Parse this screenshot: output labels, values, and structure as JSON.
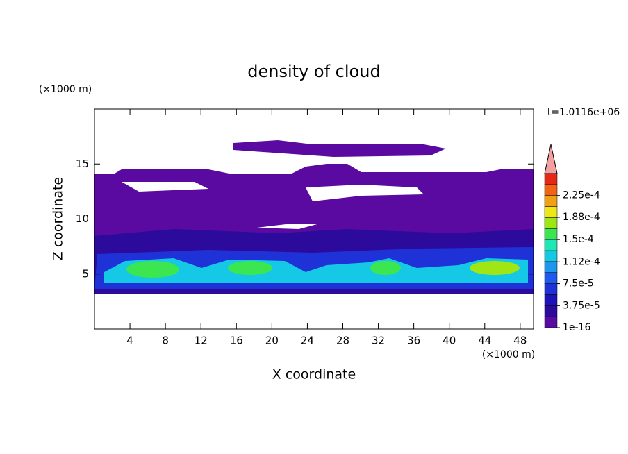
{
  "chart_data": {
    "type": "contour",
    "title": "density of cloud",
    "xlabel": "X coordinate",
    "ylabel": "Z coordinate",
    "xunit": "(×1000 m)",
    "yunit": "(×1000 m)",
    "annotation": "t=1.0116e+06",
    "xlim": [
      0,
      49.5
    ],
    "ylim": [
      0,
      20
    ],
    "xticks": [
      4,
      8,
      12,
      16,
      20,
      24,
      28,
      32,
      36,
      40,
      44,
      48
    ],
    "yticks": [
      5,
      10,
      15
    ],
    "colorbar": {
      "ticks": [
        {
          "value": 1e-16,
          "label": "1e-16"
        },
        {
          "value": 3.75e-05,
          "label": "3.75e-5"
        },
        {
          "value": 7.5e-05,
          "label": "7.5e-5"
        },
        {
          "value": 0.000112,
          "label": "1.12e-4"
        },
        {
          "value": 0.00015,
          "label": "1.5e-4"
        },
        {
          "value": 0.000188,
          "label": "1.88e-4"
        },
        {
          "value": 0.000225,
          "label": "2.25e-4"
        }
      ],
      "colors": [
        "#5a0aa0",
        "#2c0a9c",
        "#1c14b8",
        "#1e32d8",
        "#1e5af0",
        "#1e96f0",
        "#14c8e6",
        "#1ee6b4",
        "#3ce650",
        "#a0e614",
        "#f0e614",
        "#f0a014",
        "#f06414",
        "#e62814"
      ],
      "extend_color": "#f4a0a0"
    }
  }
}
